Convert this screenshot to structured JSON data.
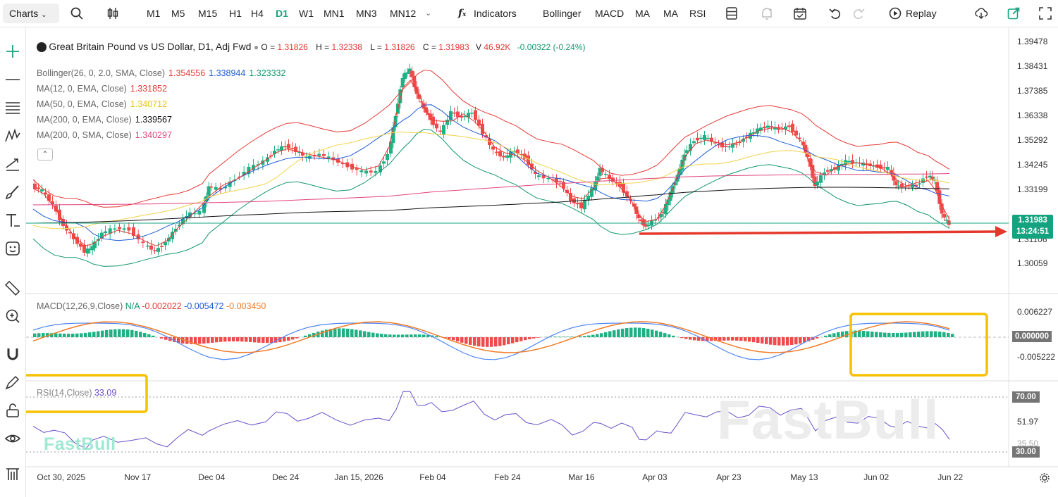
{
  "toolbar": {
    "charts_label": "Charts",
    "timeframes": [
      "M1",
      "M5",
      "M15",
      "H1",
      "H4",
      "D1",
      "W1",
      "MN1",
      "MN3",
      "MN12"
    ],
    "selected_timeframe": "D1",
    "indicators_label": "Indicators",
    "indicator_shortcuts": [
      "Bollinger",
      "MACD",
      "MA",
      "MA",
      "RSI"
    ],
    "replay_label": "Replay"
  },
  "symbol": {
    "title": "Great Britain Pound vs US Dollar, D1, Adj Fwd",
    "open_label": "O =",
    "open": "1.31826",
    "high_label": "H =",
    "high": "1.32338",
    "low_label": "L =",
    "low": "1.31826",
    "close_label": "C =",
    "close": "1.31983",
    "volume_label": "V",
    "volume": "46.92K",
    "change": "-0.00322 (-0.24%)"
  },
  "indicators": [
    {
      "name": "Bollinger(26, 0, 2.0, SMA, Close)",
      "values": [
        {
          "v": "1.354556",
          "color": "#e53935"
        },
        {
          "v": "1.338944",
          "color": "#1e5bd8"
        },
        {
          "v": "1.323332",
          "color": "#12966e"
        }
      ]
    },
    {
      "name": "MA(12, 0, EMA, Close)",
      "values": [
        {
          "v": "1.331852",
          "color": "#e53935"
        }
      ]
    },
    {
      "name": "MA(50, 0, EMA, Close)",
      "values": [
        {
          "v": "1.340712",
          "color": "#e8c21a"
        }
      ]
    },
    {
      "name": "MA(200, 0, EMA, Close)",
      "values": [
        {
          "v": "1.339567",
          "color": "#111111"
        }
      ]
    },
    {
      "name": "MA(200, 0, SMA, Close)",
      "values": [
        {
          "v": "1.340297",
          "color": "#e0457b"
        }
      ]
    }
  ],
  "price_axis": [
    "1.39478",
    "1.38431",
    "1.37385",
    "1.36338",
    "1.35292",
    "1.34245",
    "1.33199",
    "1.31106",
    "1.30059"
  ],
  "last_price": {
    "price": "1.31983",
    "countdown": "13:24:51"
  },
  "macd": {
    "name": "MACD(12,26,9,Close)",
    "hist": "N/A",
    "macd": "-0.002022",
    "signal": "-0.005472",
    "value3": "-0.003450",
    "axis": [
      "0.006227",
      "0.000000",
      "-0.005222"
    ]
  },
  "rsi": {
    "name": "RSI(14,Close)",
    "value": "33.09",
    "axis": [
      "70.00",
      "51.97",
      "35.50",
      "30.00"
    ]
  },
  "date_axis": [
    "Oct 30, 2025",
    "Nov 17",
    "Dec 04",
    "Dec 24",
    "Jan 15, 2026",
    "Feb 04",
    "Feb 24",
    "Mar 16",
    "Apr 03",
    "Apr 23",
    "May 13",
    "Jun 02",
    "Jun 22"
  ],
  "watermark": "FastBull",
  "colors": {
    "up": "#1fb184",
    "down": "#ef4b4b",
    "accent": "#14a37f",
    "highlight": "#f5c100",
    "arrow": "#e5382b"
  }
}
